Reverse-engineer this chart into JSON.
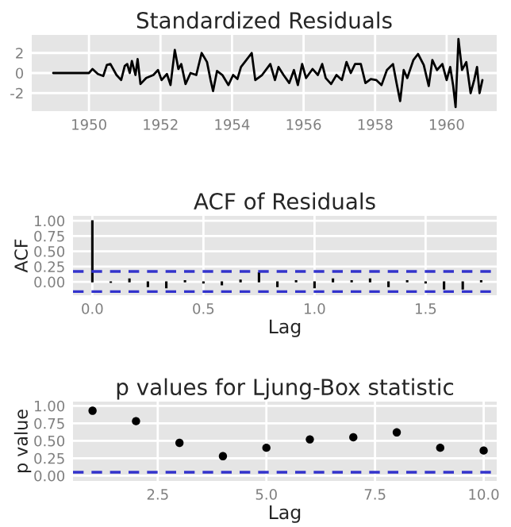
{
  "chart_data": [
    {
      "type": "line",
      "title": "Standardized Residuals",
      "grid": true,
      "x": [
        1949.0,
        1949.5,
        1950.0,
        1950.1,
        1950.25,
        1950.4,
        1950.5,
        1950.6,
        1950.77,
        1950.9,
        1951.0,
        1951.07,
        1951.14,
        1951.2,
        1951.3,
        1951.36,
        1951.44,
        1951.6,
        1951.8,
        1951.93,
        1952.03,
        1952.18,
        1952.28,
        1952.4,
        1952.5,
        1952.58,
        1952.7,
        1952.84,
        1953.0,
        1953.15,
        1953.3,
        1953.4,
        1953.47,
        1953.58,
        1953.73,
        1953.9,
        1954.03,
        1954.15,
        1954.25,
        1954.4,
        1954.55,
        1954.65,
        1954.84,
        1955.07,
        1955.2,
        1955.3,
        1955.44,
        1955.6,
        1955.73,
        1955.84,
        1955.96,
        1956.07,
        1956.25,
        1956.4,
        1956.52,
        1956.62,
        1956.77,
        1956.92,
        1957.07,
        1957.2,
        1957.32,
        1957.44,
        1957.6,
        1957.73,
        1957.88,
        1958.03,
        1958.18,
        1958.33,
        1958.5,
        1958.6,
        1958.7,
        1958.8,
        1958.9,
        1959.07,
        1959.2,
        1959.36,
        1959.5,
        1959.6,
        1959.73,
        1959.88,
        1960.0,
        1960.1,
        1960.18,
        1960.25,
        1960.33,
        1960.43,
        1960.55,
        1960.67,
        1960.77,
        1960.85,
        1960.92,
        1961.0
      ],
      "series": [
        {
          "color": "#000000",
          "values": [
            0,
            0,
            0,
            0.4,
            -0.1,
            -0.3,
            0.8,
            0.9,
            -0.2,
            -0.7,
            0.7,
            0.9,
            0,
            1.2,
            -0.2,
            1.4,
            -1.1,
            -0.5,
            -0.2,
            0.3,
            -0.7,
            -0.1,
            -1.2,
            2.3,
            0.4,
            0.9,
            -1.1,
            0,
            -0.2,
            2.0,
            1.1,
            -0.7,
            -1.8,
            0.2,
            -0.2,
            -1.2,
            -0.2,
            -0.6,
            0.6,
            1.3,
            2.0,
            -0.7,
            -0.2,
            0.9,
            -0.7,
            0.6,
            -0.2,
            -1.0,
            0.3,
            -1.2,
            0.9,
            -0.5,
            0.4,
            -0.2,
            0.9,
            -0.5,
            -1.1,
            -0.2,
            -0.7,
            1.1,
            0,
            0.9,
            0.9,
            -1.0,
            -0.6,
            -0.7,
            -1.2,
            0.3,
            0.9,
            -1.0,
            -2.8,
            0.3,
            -0.5,
            1.3,
            1.9,
            0.8,
            -1.3,
            1.3,
            0.3,
            0.9,
            -0.7,
            0.6,
            -1.2,
            -3.4,
            3.4,
            0.3,
            1.1,
            -2.0,
            -0.7,
            0.6,
            -2.0,
            -0.7
          ]
        }
      ],
      "xlim": [
        1948.4,
        1961.4
      ],
      "xticks": [
        1950,
        1952,
        1954,
        1956,
        1958,
        1960
      ],
      "ylim": [
        -3.8,
        3.8
      ],
      "yticks": [
        -2,
        0,
        2
      ]
    },
    {
      "type": "bar",
      "title": "ACF of Residuals",
      "xlabel": "Lag",
      "ylabel": "ACF",
      "grid": true,
      "x": [
        0,
        0.083,
        0.167,
        0.25,
        0.333,
        0.417,
        0.5,
        0.583,
        0.667,
        0.75,
        0.833,
        0.917,
        1.0,
        1.083,
        1.167,
        1.25,
        1.333,
        1.417,
        1.5,
        1.583,
        1.667,
        1.75
      ],
      "series": [
        {
          "color": "#000000",
          "values": [
            1.0,
            -0.01,
            0.05,
            -0.08,
            -0.1,
            0.02,
            -0.02,
            -0.05,
            0.03,
            0.15,
            -0.08,
            0.02,
            -0.1,
            0.05,
            0.02,
            0.05,
            -0.08,
            0.02,
            -0.02,
            -0.12,
            -0.12,
            0.02
          ]
        }
      ],
      "ref_lines": [
        {
          "axis": "y",
          "value": 0.17,
          "color": "#3333cc",
          "line_style": "dashed"
        },
        {
          "axis": "y",
          "value": -0.16,
          "color": "#3333cc",
          "line_style": "dashed"
        }
      ],
      "xlim": [
        -0.087,
        1.82
      ],
      "xticks": [
        {
          "value": 0,
          "label": "0.0"
        },
        {
          "value": 0.5,
          "label": "0.5"
        },
        {
          "value": 1,
          "label": "1.0"
        },
        {
          "value": 1.5,
          "label": "1.5"
        }
      ],
      "ylim": [
        -0.22,
        1.08
      ],
      "yticks": [
        {
          "value": 0,
          "label": "0.00"
        },
        {
          "value": 0.25,
          "label": "0.25"
        },
        {
          "value": 0.5,
          "label": "0.50"
        },
        {
          "value": 0.75,
          "label": "0.75"
        },
        {
          "value": 1,
          "label": "1.00"
        }
      ]
    },
    {
      "type": "scatter",
      "title": "p values for Ljung-Box statistic",
      "xlabel": "Lag",
      "ylabel": "p value",
      "grid": true,
      "marker": "circle",
      "x": [
        1,
        2,
        3,
        4,
        5,
        6,
        7,
        8,
        9,
        10
      ],
      "series": [
        {
          "color": "#000000",
          "values": [
            0.93,
            0.78,
            0.47,
            0.28,
            0.4,
            0.52,
            0.55,
            0.62,
            0.4,
            0.36
          ]
        }
      ],
      "ref_lines": [
        {
          "axis": "y",
          "value": 0.05,
          "color": "#3333cc",
          "line_style": "dashed"
        }
      ],
      "xlim": [
        0.55,
        10.3
      ],
      "xticks": [
        {
          "value": 2.5,
          "label": "2.5"
        },
        {
          "value": 5,
          "label": "5.0"
        },
        {
          "value": 7.5,
          "label": "7.5"
        },
        {
          "value": 10,
          "label": "10.0"
        }
      ],
      "ylim": [
        -0.075,
        1.06
      ],
      "yticks": [
        {
          "value": 0,
          "label": "0.00"
        },
        {
          "value": 0.25,
          "label": "0.25"
        },
        {
          "value": 0.5,
          "label": "0.50"
        },
        {
          "value": 0.75,
          "label": "0.75"
        },
        {
          "value": 1,
          "label": "1.00"
        }
      ]
    }
  ]
}
